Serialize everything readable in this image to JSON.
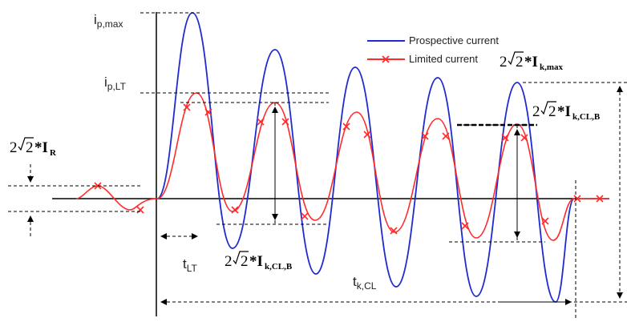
{
  "legend": {
    "prospective": "Prospective current",
    "limited": "Limited current"
  },
  "colors": {
    "prospective": "#1f2bd1",
    "limited": "#ff2a2a",
    "axis": "#000000"
  },
  "labels": {
    "ip_max": {
      "main": "i",
      "sub": "p,max"
    },
    "ip_lt": {
      "main": "i",
      "sub": "p,LT"
    },
    "t_lt": {
      "main": "t",
      "sub": "LT"
    },
    "t_kcl": {
      "main": "t",
      "sub": "k,CL"
    },
    "ir": {
      "coef": "2",
      "rad": "2",
      "star": "*I",
      "sub": "R"
    },
    "ik_max": {
      "coef": "2",
      "rad": "2",
      "star": "*I",
      "sub": "k,max"
    },
    "ik_clb_top": {
      "coef": "2",
      "rad": "2",
      "star": "*I",
      "sub": "k,CL,B"
    },
    "ik_clb_bottom": {
      "coef": "2",
      "rad": "2",
      "star": "*I",
      "sub": "k,CL,B"
    }
  }
}
